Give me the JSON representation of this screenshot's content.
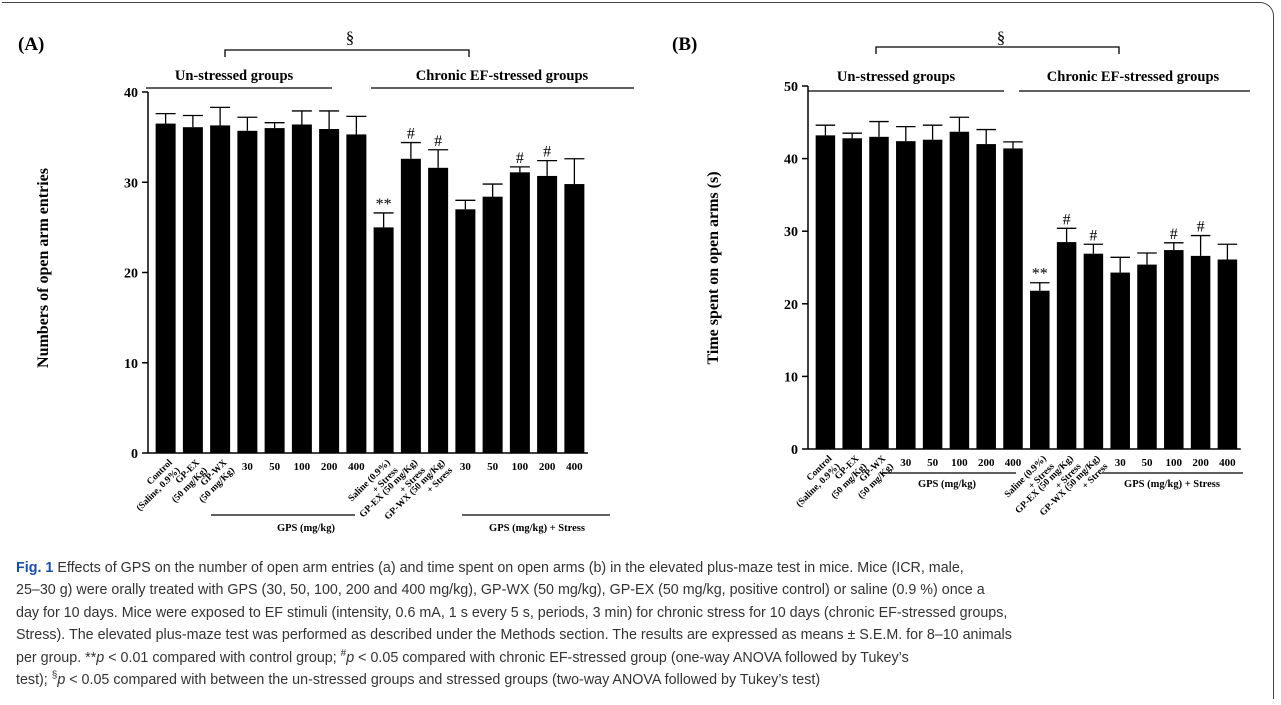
{
  "charts": [
    {
      "panel_label": "(A)",
      "ylabel": "Numbers  of open arm entries",
      "ylim": [
        0,
        40
      ],
      "yticks": [
        "0",
        "10",
        "20",
        "30",
        "40"
      ],
      "section_mark": "§",
      "group_titles": [
        "Un-stressed groups",
        "Chronic EF-stressed groups"
      ],
      "gps_axis_label": "GPS (mg/kg)",
      "gps_stress_axis_label": "GPS (mg/kg) + Stress"
    },
    {
      "panel_label": "(B)",
      "ylabel": "Time  spent on open arms (s)",
      "ylim": [
        0,
        50
      ],
      "yticks": [
        "0",
        "10",
        "20",
        "30",
        "40",
        "50"
      ],
      "section_mark": "§",
      "group_titles": [
        "Un-stressed groups",
        "Chronic EF-stressed groups"
      ],
      "gps_axis_label": "GPS (mg/kg)",
      "gps_stress_axis_label": "GPS (mg/kg) + Stress"
    }
  ],
  "chart_data": [
    {
      "type": "bar",
      "title": "",
      "xlabel": "",
      "ylabel": "Numbers  of open arm entries",
      "ylim": [
        0,
        40
      ],
      "grid": false,
      "categories": [
        [
          "Control",
          "(Saline, 0.9%)"
        ],
        [
          "GP-EX",
          "(50 mg/Kg)"
        ],
        [
          "GP-WX",
          "(50 mg/Kg)"
        ],
        [
          "30"
        ],
        [
          "50"
        ],
        [
          "100"
        ],
        [
          "200"
        ],
        [
          "400"
        ],
        [
          "Saline (0.9%)",
          "+ Stress"
        ],
        [
          "GP-EX (50 mg/Kg)",
          "+ Stress"
        ],
        [
          "GP-WX (50 mg/Kg)",
          "+ Stress"
        ],
        [
          "30"
        ],
        [
          "50"
        ],
        [
          "100"
        ],
        [
          "200"
        ],
        [
          "400"
        ]
      ],
      "values": [
        36.5,
        36.1,
        36.3,
        35.7,
        36.0,
        36.4,
        35.9,
        35.3,
        25.0,
        32.6,
        31.6,
        27.0,
        28.4,
        31.1,
        30.7,
        29.8
      ],
      "errors": [
        1.1,
        1.3,
        2.0,
        1.5,
        0.6,
        1.5,
        2.0,
        2.0,
        1.6,
        1.8,
        2.0,
        1.0,
        1.4,
        0.6,
        1.7,
        2.8
      ],
      "annotations": [
        "",
        "",
        "",
        "",
        "",
        "",
        "",
        "",
        "**",
        "#",
        "#",
        "",
        "",
        "#",
        "#",
        ""
      ]
    },
    {
      "type": "bar",
      "title": "",
      "xlabel": "",
      "ylabel": "Time  spent on open arms (s)",
      "ylim": [
        0,
        50
      ],
      "grid": false,
      "categories": [
        [
          "Control",
          "(Saline, 0.9%)"
        ],
        [
          "GP-EX",
          "(50 mg/Kg)"
        ],
        [
          "GP-WX",
          "(50 mg/Kg)"
        ],
        [
          "30"
        ],
        [
          "50"
        ],
        [
          "100"
        ],
        [
          "200"
        ],
        [
          "400"
        ],
        [
          "Saline (0.9%)",
          "+ Stress"
        ],
        [
          "GP-EX (50 mg/Kg)",
          "+ Stress"
        ],
        [
          "GP-WX (50 mg/Kg)",
          "+ Stress"
        ],
        [
          "30"
        ],
        [
          "50"
        ],
        [
          "100"
        ],
        [
          "200"
        ],
        [
          "400"
        ]
      ],
      "values": [
        43.2,
        42.8,
        43.0,
        42.4,
        42.6,
        43.7,
        42.0,
        41.4,
        21.8,
        28.5,
        26.9,
        24.3,
        25.4,
        27.4,
        26.6,
        26.1
      ],
      "errors": [
        1.4,
        0.7,
        2.1,
        2.0,
        2.0,
        2.0,
        2.0,
        0.9,
        1.1,
        1.9,
        1.3,
        2.1,
        1.6,
        1.0,
        2.8,
        2.1
      ],
      "annotations": [
        "",
        "",
        "",
        "",
        "",
        "",
        "",
        "",
        "**",
        "#",
        "#",
        "",
        "",
        "#",
        "#",
        ""
      ]
    }
  ],
  "caption": {
    "label": "Fig. 1",
    "line1": "Effects of GPS on the number of open arm entries (a) and time spent on open arms (b) in the elevated plus-maze test in mice. Mice (ICR, male,",
    "line2": "25–30 g) were orally treated with GPS (30, 50, 100, 200 and 400 mg/kg), GP-WX (50 mg/kg), GP-EX (50 mg/kg, positive control) or saline (0.9 %) once a",
    "line3": "day for 10 days. Mice were exposed to EF stimuli (intensity, 0.6 mA, 1 s every 5 s, periods, 3 min) for chronic stress for 10 days (chronic EF-stressed groups,",
    "line4": "Stress). The elevated plus-maze test was performed as described under the Methods section. The results are expressed as means ± S.E.M. for 8–10 animals",
    "line5a": "per group. **",
    "p1": "p",
    "line5b": " < 0.01 compared with control group; ",
    "sup1": "#",
    "p2": "p",
    "line5c": " < 0.05 compared with chronic EF-stressed group (one-way ANOVA followed by Tukey’s",
    "line6a": "test); ",
    "sup2": "§",
    "p3": "p",
    "line6b": " < 0.05 compared with between the un-stressed groups and stressed groups (two-way ANOVA followed by Tukey’s test)"
  }
}
